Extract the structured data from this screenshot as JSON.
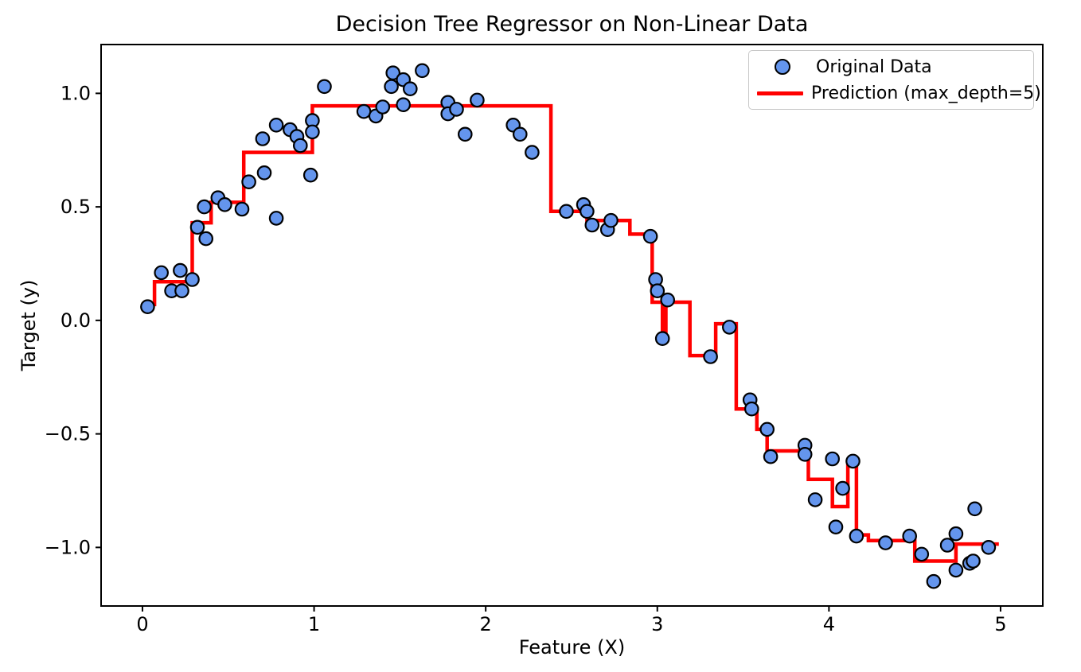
{
  "chart_data": {
    "type": "scatter+step",
    "title": "Decision Tree Regressor on Non-Linear Data",
    "xlabel": "Feature (X)",
    "ylabel": "Target (y)",
    "xlim": [
      -0.241,
      5.246
    ],
    "ylim": [
      -1.258,
      1.215
    ],
    "grid": false,
    "legend_position": "upper right",
    "xticks": [
      {
        "value": 0,
        "label": "0"
      },
      {
        "value": 1,
        "label": "1"
      },
      {
        "value": 2,
        "label": "2"
      },
      {
        "value": 3,
        "label": "3"
      },
      {
        "value": 4,
        "label": "4"
      },
      {
        "value": 5,
        "label": "5"
      }
    ],
    "yticks": [
      {
        "value": 1.0,
        "label": "1.0"
      },
      {
        "value": 0.5,
        "label": "0.5"
      },
      {
        "value": 0.0,
        "label": "0.0"
      },
      {
        "value": -0.5,
        "label": "−0.5"
      },
      {
        "value": -1.0,
        "label": "−1.0"
      }
    ],
    "series": [
      {
        "name": "Original Data",
        "type": "scatter",
        "marker": "circle",
        "fill": "#6495ED",
        "edge": "#000000",
        "points": [
          [
            0.03,
            0.06
          ],
          [
            0.11,
            0.21
          ],
          [
            0.17,
            0.13
          ],
          [
            0.22,
            0.22
          ],
          [
            0.23,
            0.13
          ],
          [
            0.29,
            0.18
          ],
          [
            0.32,
            0.41
          ],
          [
            0.36,
            0.5
          ],
          [
            0.37,
            0.36
          ],
          [
            0.44,
            0.54
          ],
          [
            0.48,
            0.51
          ],
          [
            0.58,
            0.49
          ],
          [
            0.62,
            0.61
          ],
          [
            0.7,
            0.8
          ],
          [
            0.71,
            0.65
          ],
          [
            0.78,
            0.86
          ],
          [
            0.78,
            0.45
          ],
          [
            0.86,
            0.84
          ],
          [
            0.9,
            0.81
          ],
          [
            0.92,
            0.77
          ],
          [
            0.98,
            0.64
          ],
          [
            0.99,
            0.88
          ],
          [
            0.99,
            0.83
          ],
          [
            1.06,
            1.03
          ],
          [
            1.29,
            0.92
          ],
          [
            1.36,
            0.9
          ],
          [
            1.4,
            0.94
          ],
          [
            1.45,
            1.03
          ],
          [
            1.46,
            1.09
          ],
          [
            1.52,
            1.06
          ],
          [
            1.52,
            0.95
          ],
          [
            1.56,
            1.02
          ],
          [
            1.63,
            1.1
          ],
          [
            1.78,
            0.96
          ],
          [
            1.78,
            0.91
          ],
          [
            1.83,
            0.93
          ],
          [
            1.88,
            0.82
          ],
          [
            1.95,
            0.97
          ],
          [
            2.16,
            0.86
          ],
          [
            2.2,
            0.82
          ],
          [
            2.27,
            0.74
          ],
          [
            2.47,
            0.48
          ],
          [
            2.57,
            0.51
          ],
          [
            2.59,
            0.48
          ],
          [
            2.62,
            0.42
          ],
          [
            2.71,
            0.4
          ],
          [
            2.73,
            0.44
          ],
          [
            2.96,
            0.37
          ],
          [
            2.99,
            0.18
          ],
          [
            3.0,
            0.13
          ],
          [
            3.03,
            -0.08
          ],
          [
            3.06,
            0.09
          ],
          [
            3.31,
            -0.16
          ],
          [
            3.42,
            -0.03
          ],
          [
            3.54,
            -0.35
          ],
          [
            3.55,
            -0.39
          ],
          [
            3.64,
            -0.48
          ],
          [
            3.66,
            -0.6
          ],
          [
            3.86,
            -0.55
          ],
          [
            3.86,
            -0.59
          ],
          [
            3.92,
            -0.79
          ],
          [
            4.02,
            -0.61
          ],
          [
            4.04,
            -0.91
          ],
          [
            4.08,
            -0.74
          ],
          [
            4.14,
            -0.62
          ],
          [
            4.16,
            -0.95
          ],
          [
            4.33,
            -0.98
          ],
          [
            4.47,
            -0.95
          ],
          [
            4.54,
            -1.03
          ],
          [
            4.61,
            -1.15
          ],
          [
            4.69,
            -0.99
          ],
          [
            4.74,
            -0.94
          ],
          [
            4.74,
            -1.1
          ],
          [
            4.82,
            -1.07
          ],
          [
            4.84,
            -1.06
          ],
          [
            4.85,
            -0.83
          ],
          [
            4.93,
            -1.0
          ]
        ]
      },
      {
        "name": "Prediction (max_depth=5)",
        "type": "step",
        "color": "#ff0000",
        "segments": [
          {
            "x0": 0.0,
            "x1": 0.07,
            "y": 0.07
          },
          {
            "x0": 0.07,
            "x1": 0.29,
            "y": 0.17
          },
          {
            "x0": 0.29,
            "x1": 0.4,
            "y": 0.43
          },
          {
            "x0": 0.4,
            "x1": 0.59,
            "y": 0.52
          },
          {
            "x0": 0.59,
            "x1": 0.99,
            "y": 0.74
          },
          {
            "x0": 0.99,
            "x1": 2.38,
            "y": 0.945
          },
          {
            "x0": 2.38,
            "x1": 2.59,
            "y": 0.48
          },
          {
            "x0": 2.59,
            "x1": 2.84,
            "y": 0.44
          },
          {
            "x0": 2.84,
            "x1": 2.97,
            "y": 0.38
          },
          {
            "x0": 2.97,
            "x1": 3.03,
            "y": 0.08
          },
          {
            "x0": 3.03,
            "x1": 3.05,
            "y": -0.08
          },
          {
            "x0": 3.05,
            "x1": 3.19,
            "y": 0.08
          },
          {
            "x0": 3.19,
            "x1": 3.34,
            "y": -0.155
          },
          {
            "x0": 3.34,
            "x1": 3.46,
            "y": -0.015
          },
          {
            "x0": 3.46,
            "x1": 3.58,
            "y": -0.39
          },
          {
            "x0": 3.58,
            "x1": 3.64,
            "y": -0.48
          },
          {
            "x0": 3.64,
            "x1": 3.88,
            "y": -0.575
          },
          {
            "x0": 3.88,
            "x1": 4.02,
            "y": -0.7
          },
          {
            "x0": 4.02,
            "x1": 4.11,
            "y": -0.82
          },
          {
            "x0": 4.11,
            "x1": 4.16,
            "y": -0.62
          },
          {
            "x0": 4.16,
            "x1": 4.23,
            "y": -0.945
          },
          {
            "x0": 4.23,
            "x1": 4.5,
            "y": -0.97
          },
          {
            "x0": 4.5,
            "x1": 4.74,
            "y": -1.06
          },
          {
            "x0": 4.74,
            "x1": 4.99,
            "y": -0.985
          }
        ]
      }
    ],
    "colors": {
      "point_fill": "#6495ED",
      "point_edge": "#000000",
      "prediction_line": "#ff0000",
      "axis": "#000000"
    }
  }
}
